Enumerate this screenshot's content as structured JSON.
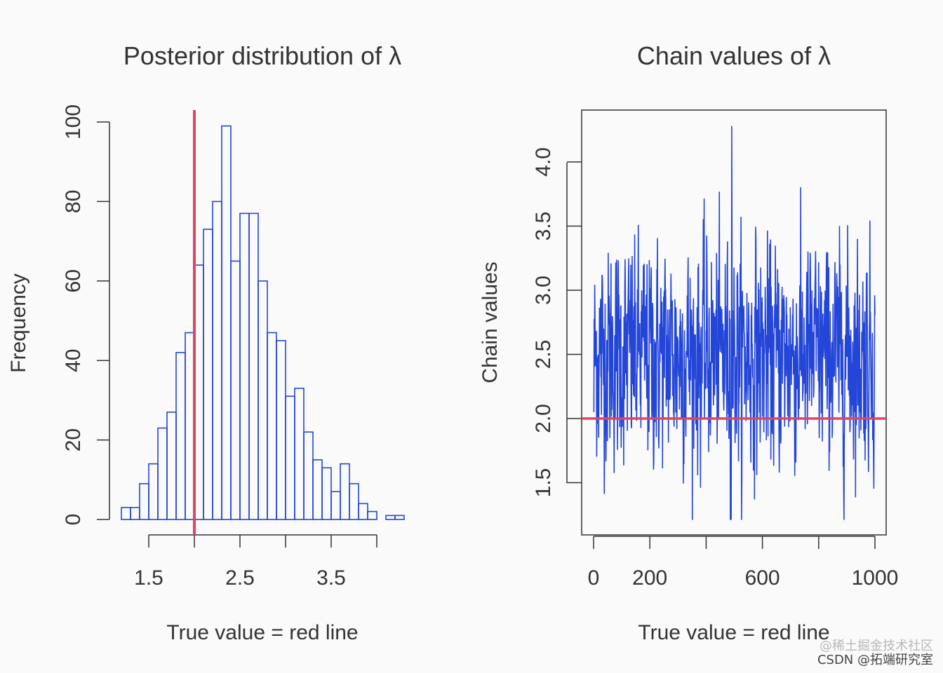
{
  "chart_data": [
    {
      "type": "bar",
      "title": "Posterior distribution of λ",
      "xlabel": "True value = red line",
      "ylabel": "Frequency",
      "x_bin_edges": [
        1.2,
        1.3,
        1.4,
        1.5,
        1.6,
        1.7,
        1.8,
        1.9,
        2.0,
        2.1,
        2.2,
        2.3,
        2.4,
        2.5,
        2.6,
        2.7,
        2.8,
        2.9,
        3.0,
        3.1,
        3.2,
        3.3,
        3.4,
        3.5,
        3.6,
        3.7,
        3.8,
        3.9,
        4.0,
        4.1,
        4.2,
        4.3
      ],
      "values": [
        3,
        3,
        9,
        14,
        23,
        27,
        42,
        47,
        64,
        73,
        80,
        99,
        65,
        77,
        77,
        60,
        47,
        45,
        31,
        33,
        22,
        15,
        13,
        7,
        14,
        9,
        4,
        2,
        0,
        1,
        1
      ],
      "xlim": [
        1.2,
        4.3
      ],
      "ylim": [
        0,
        100
      ],
      "x_ticks": [
        1.5,
        2.5,
        3.5
      ],
      "x_tick_labels": [
        "1.5",
        "2.5",
        "3.5"
      ],
      "x_axis_ticks": [
        1.5,
        2.0,
        2.5,
        3.0,
        3.5,
        4.0
      ],
      "y_ticks": [
        0,
        20,
        40,
        60,
        80,
        100
      ],
      "y_tick_labels": [
        "0",
        "20",
        "40",
        "60",
        "80",
        "100"
      ],
      "true_value": 2.0,
      "colors": {
        "bars": "#2446d8",
        "true_line": "#dd4466"
      }
    },
    {
      "type": "line",
      "title": "Chain values of λ",
      "xlabel": "True value = red line",
      "ylabel": "Chain values",
      "n_iterations": 1000,
      "mean": 2.5,
      "sd": 0.42,
      "min": 1.21,
      "max": 4.28,
      "xlim": [
        0,
        1000
      ],
      "ylim": [
        1.2,
        4.4
      ],
      "x_ticks": [
        0,
        200,
        400,
        600,
        800,
        1000
      ],
      "x_tick_labels": [
        "0",
        "200",
        "",
        "600",
        "",
        "1000"
      ],
      "y_ticks": [
        1.5,
        2.0,
        2.5,
        3.0,
        3.5,
        4.0
      ],
      "y_tick_labels": [
        "1.5",
        "2.0",
        "2.5",
        "3.0",
        "3.5",
        "4.0"
      ],
      "true_value": 2.0,
      "colors": {
        "series": "#2446d8",
        "true_line": "#dd4466"
      }
    }
  ],
  "watermark": {
    "line1": "@稀土掘金技术社区",
    "line2": "CSDN @拓端研究室"
  }
}
